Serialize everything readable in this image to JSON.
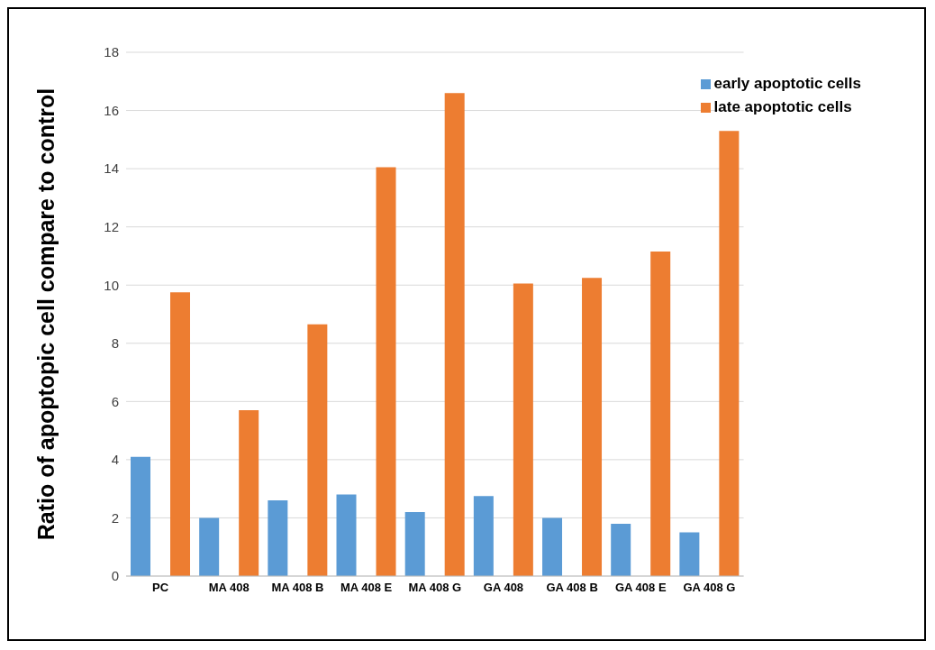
{
  "chart_data": {
    "type": "bar",
    "ylabel": "Ratio of apoptopic cell compare to control",
    "categories": [
      "PC",
      "MA 408",
      "MA 408 B",
      "MA 408 E",
      "MA 408 G",
      "GA 408",
      "GA 408 B",
      "GA 408 E",
      "GA 408 G"
    ],
    "series": [
      {
        "name": "early apoptotic cells",
        "color": "#5b9bd5",
        "values": [
          4.1,
          2.0,
          2.6,
          2.8,
          2.2,
          2.75,
          2.0,
          1.8,
          1.5
        ]
      },
      {
        "name": "late apoptotic cells",
        "color": "#ed7d31",
        "values": [
          9.75,
          5.7,
          8.65,
          14.05,
          16.6,
          10.05,
          10.25,
          11.15,
          15.3
        ]
      }
    ],
    "ylim": [
      0,
      18
    ],
    "yticks": [
      0,
      2,
      4,
      6,
      8,
      10,
      12,
      14,
      16,
      18
    ],
    "grid": "y",
    "legend": "top right"
  }
}
